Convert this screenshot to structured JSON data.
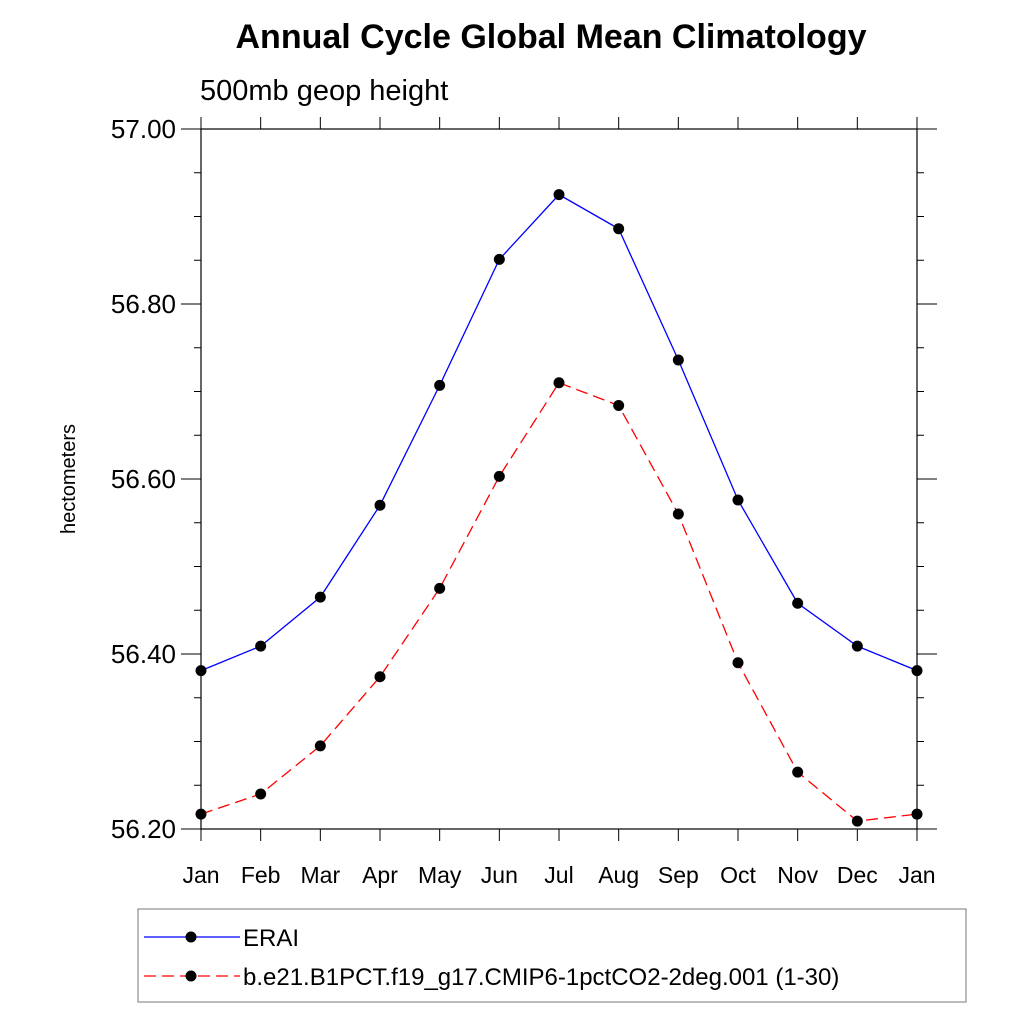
{
  "chart_data": {
    "type": "line",
    "title": "Annual Cycle Global Mean Climatology",
    "subtitle": "500mb geop height",
    "ylabel": "hectometers",
    "xlabel": "",
    "categories": [
      "Jan",
      "Feb",
      "Mar",
      "Apr",
      "May",
      "Jun",
      "Jul",
      "Aug",
      "Sep",
      "Oct",
      "Nov",
      "Dec",
      "Jan"
    ],
    "ylim": [
      56.2,
      57.0
    ],
    "yticks": [
      56.2,
      56.4,
      56.6,
      56.8,
      57.0
    ],
    "ytick_labels": [
      "56.20",
      "56.40",
      "56.60",
      "56.80",
      "57.00"
    ],
    "y_minor_step": 0.05,
    "legend_position": "bottom",
    "series": [
      {
        "name": "ERAI",
        "color": "#0000ff",
        "dash": "solid",
        "values": [
          56.381,
          56.409,
          56.465,
          56.57,
          56.707,
          56.851,
          56.925,
          56.886,
          56.736,
          56.576,
          56.458,
          56.409,
          56.381
        ]
      },
      {
        "name": "b.e21.B1PCT.f19_g17.CMIP6-1pctCO2-2deg.001 (1-30)",
        "color": "#ff0000",
        "dash": "dashed",
        "values": [
          56.217,
          56.24,
          56.295,
          56.374,
          56.475,
          56.603,
          56.71,
          56.684,
          56.56,
          56.39,
          56.265,
          56.209,
          56.217
        ]
      }
    ]
  }
}
